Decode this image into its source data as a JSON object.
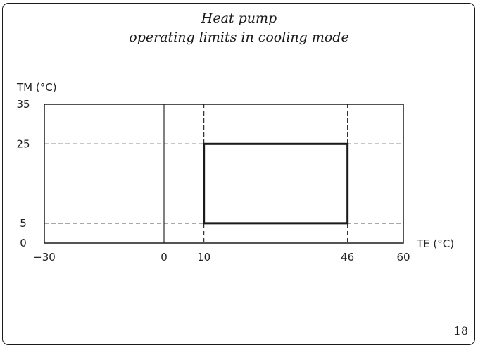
{
  "title": {
    "line1": "Heat pump",
    "line2": "operating limits in cooling mode"
  },
  "page_number": "18",
  "chart_data": {
    "type": "area",
    "xlabel": "TE (°C)",
    "ylabel": "TM (°C)",
    "xlim": [
      -30,
      60
    ],
    "ylim": [
      0,
      35
    ],
    "x_ticks": [
      -30,
      0,
      10,
      46,
      60
    ],
    "y_ticks": [
      0,
      5,
      25,
      35
    ],
    "x_reference_lines": [
      0,
      10,
      46
    ],
    "y_reference_lines": [
      5,
      25
    ],
    "operating_region": {
      "te_min": 10,
      "te_max": 46,
      "tm_min": 5,
      "tm_max": 25
    },
    "grid": false,
    "colors": {
      "line": "#1a1a1a"
    }
  }
}
